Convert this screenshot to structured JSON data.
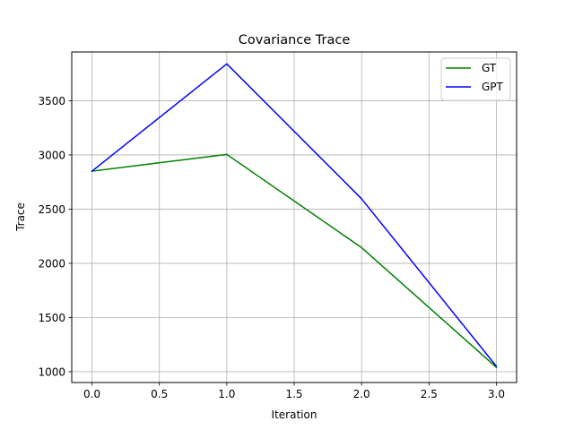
{
  "chart_data": {
    "type": "line",
    "title": "Covariance Trace",
    "xlabel": "Iteration",
    "ylabel": "Trace",
    "xlim": [
      -0.15,
      3.15
    ],
    "ylim": [
      900,
      3950
    ],
    "xticks": [
      0.0,
      0.5,
      1.0,
      1.5,
      2.0,
      2.5,
      3.0
    ],
    "xtick_labels": [
      "0.0",
      "0.5",
      "1.0",
      "1.5",
      "2.0",
      "2.5",
      "3.0"
    ],
    "yticks": [
      1000,
      1500,
      2000,
      2500,
      3000,
      3500
    ],
    "ytick_labels": [
      "1000",
      "1500",
      "2000",
      "2500",
      "3000",
      "3500"
    ],
    "grid": true,
    "legend_position": "top-right",
    "x": [
      0,
      1,
      2,
      3
    ],
    "series": [
      {
        "name": "GT",
        "color": "#008000",
        "values": [
          2850,
          3005,
          2145,
          1040
        ]
      },
      {
        "name": "GPT",
        "color": "#0000ff",
        "values": [
          2850,
          3840,
          2595,
          1050
        ]
      }
    ]
  }
}
